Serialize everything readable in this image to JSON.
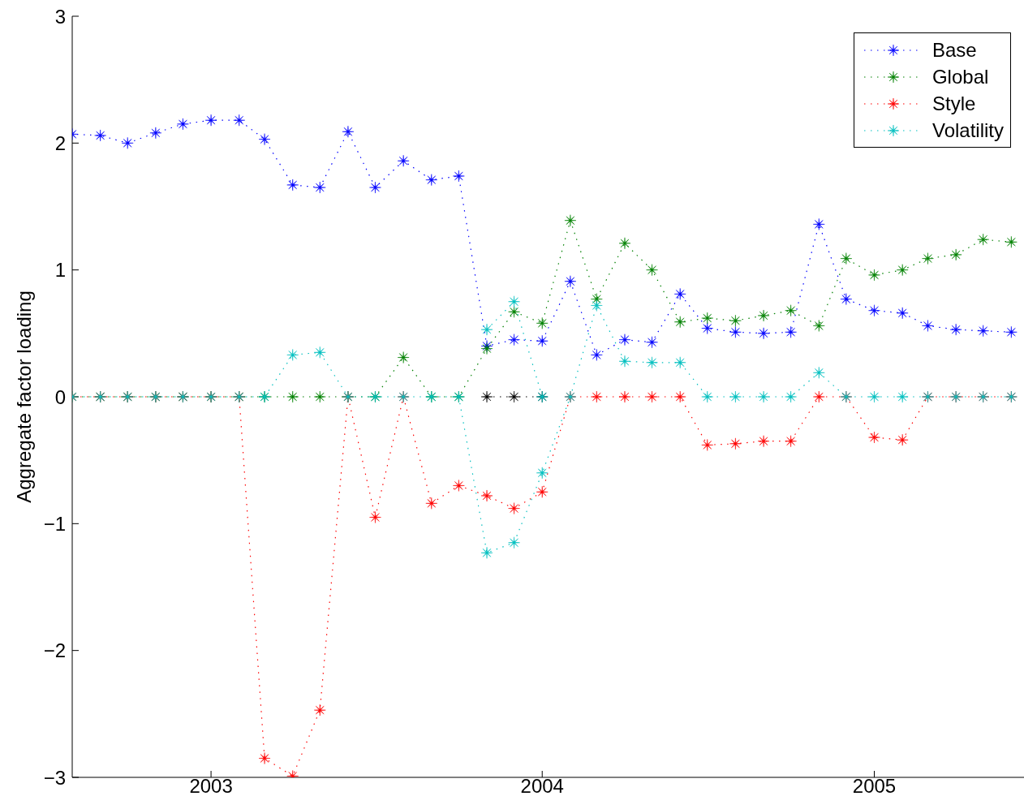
{
  "chart_data": {
    "type": "line",
    "ylabel": "Aggregate factor loading",
    "x": [
      "2002-08",
      "2002-09",
      "2002-10",
      "2002-11",
      "2002-12",
      "2003-01",
      "2003-02",
      "2003-03",
      "2003-04",
      "2003-05",
      "2003-06",
      "2003-07",
      "2003-08",
      "2003-09",
      "2003-10",
      "2003-11",
      "2003-12",
      "2004-01",
      "2004-02",
      "2004-03",
      "2004-04",
      "2004-05",
      "2004-06",
      "2004-07",
      "2004-08",
      "2004-09",
      "2004-10",
      "2004-11",
      "2004-12",
      "2005-01",
      "2005-02",
      "2005-03",
      "2005-04",
      "2005-05",
      "2005-06"
    ],
    "xlim": [
      "2002-08-01",
      "2005-06-15"
    ],
    "xticks": [
      "2003",
      "2004",
      "2005"
    ],
    "ylim": [
      -3,
      3
    ],
    "yticks": [
      -3,
      -2,
      -1,
      0,
      1,
      2,
      3
    ],
    "marker": "star",
    "line_style": "dotted",
    "legend": "top right",
    "series": [
      {
        "color": "#000000",
        "values": [
          null,
          null,
          null,
          null,
          null,
          null,
          null,
          null,
          null,
          null,
          null,
          null,
          null,
          null,
          null,
          0,
          0,
          0,
          null,
          null,
          null,
          null,
          null,
          null,
          null,
          null,
          null,
          null,
          null,
          null,
          null,
          null,
          null,
          null,
          null
        ]
      },
      {
        "name": "Base",
        "color": "#0000ff",
        "values": [
          2.07,
          2.06,
          2.0,
          2.08,
          2.15,
          2.18,
          2.18,
          2.03,
          1.67,
          1.65,
          2.09,
          1.65,
          1.86,
          1.71,
          1.74,
          0.4,
          0.45,
          0.44,
          0.91,
          0.33,
          0.45,
          0.43,
          0.81,
          0.54,
          0.51,
          0.5,
          0.51,
          1.36,
          0.77,
          0.68,
          0.66,
          0.56,
          0.53,
          0.52,
          0.51
        ]
      },
      {
        "name": "Global",
        "color": "#008000",
        "values": [
          0,
          0,
          0,
          0,
          0,
          0,
          0,
          0,
          0,
          0,
          0,
          0,
          0.31,
          0,
          0,
          0.38,
          0.67,
          0.58,
          1.39,
          0.77,
          1.21,
          1.0,
          0.59,
          0.62,
          0.6,
          0.64,
          0.68,
          0.56,
          1.09,
          0.96,
          1.0,
          1.09,
          1.12,
          1.24,
          1.22
        ]
      },
      {
        "name": "Style",
        "color": "#ff0000",
        "values": [
          0,
          0,
          0,
          0,
          0,
          0,
          0,
          -2.85,
          -2.99,
          -2.47,
          0,
          -0.95,
          0,
          -0.84,
          -0.7,
          -0.78,
          -0.88,
          -0.75,
          0,
          0,
          0,
          0,
          0,
          -0.38,
          -0.37,
          -0.35,
          -0.35,
          0,
          0,
          -0.32,
          -0.34,
          0,
          0,
          0,
          0
        ]
      },
      {
        "color": "#00bfbf",
        "values": [
          null,
          null,
          null,
          null,
          null,
          null,
          null,
          null,
          null,
          null,
          null,
          null,
          null,
          null,
          null,
          0.53,
          0.75,
          0,
          null,
          null,
          null,
          null,
          null,
          null,
          null,
          null,
          null,
          null,
          null,
          null,
          null,
          null,
          null,
          null,
          null
        ]
      },
      {
        "name": "Volatility",
        "color": "#00bfbf",
        "values": [
          0,
          0,
          0,
          0,
          0,
          0,
          0,
          0,
          0.33,
          0.35,
          0,
          0,
          0,
          0,
          0,
          -1.23,
          -1.15,
          -0.6,
          0,
          0.72,
          0.28,
          0.27,
          0.27,
          0,
          0,
          0,
          0,
          0.19,
          0,
          0,
          0,
          0,
          0,
          0,
          0
        ]
      }
    ]
  }
}
